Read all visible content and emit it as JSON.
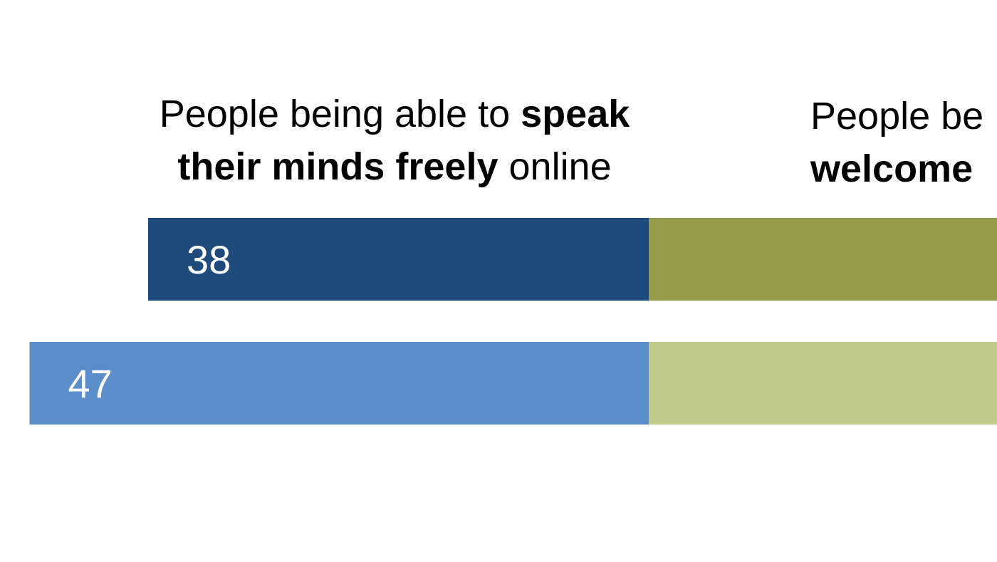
{
  "headers": {
    "left": {
      "pre": "People being able to ",
      "bold1": "speak",
      "bold2": "their minds freely",
      "post": " online"
    },
    "right": {
      "line1": "People be",
      "line2": "welcome"
    }
  },
  "colors": {
    "speak_dark": "#1e4a7c",
    "speak_light": "#5b8dcb",
    "welcome_dark": "#969d4a",
    "welcome_light": "#c0ca8a",
    "label_text": "#ffffff"
  },
  "chart_data": {
    "type": "bar",
    "orientation": "horizontal-diverging",
    "series": [
      {
        "values": [
          38,
          47
        ]
      }
    ],
    "title": "",
    "xlabel": "",
    "ylabel": ""
  }
}
